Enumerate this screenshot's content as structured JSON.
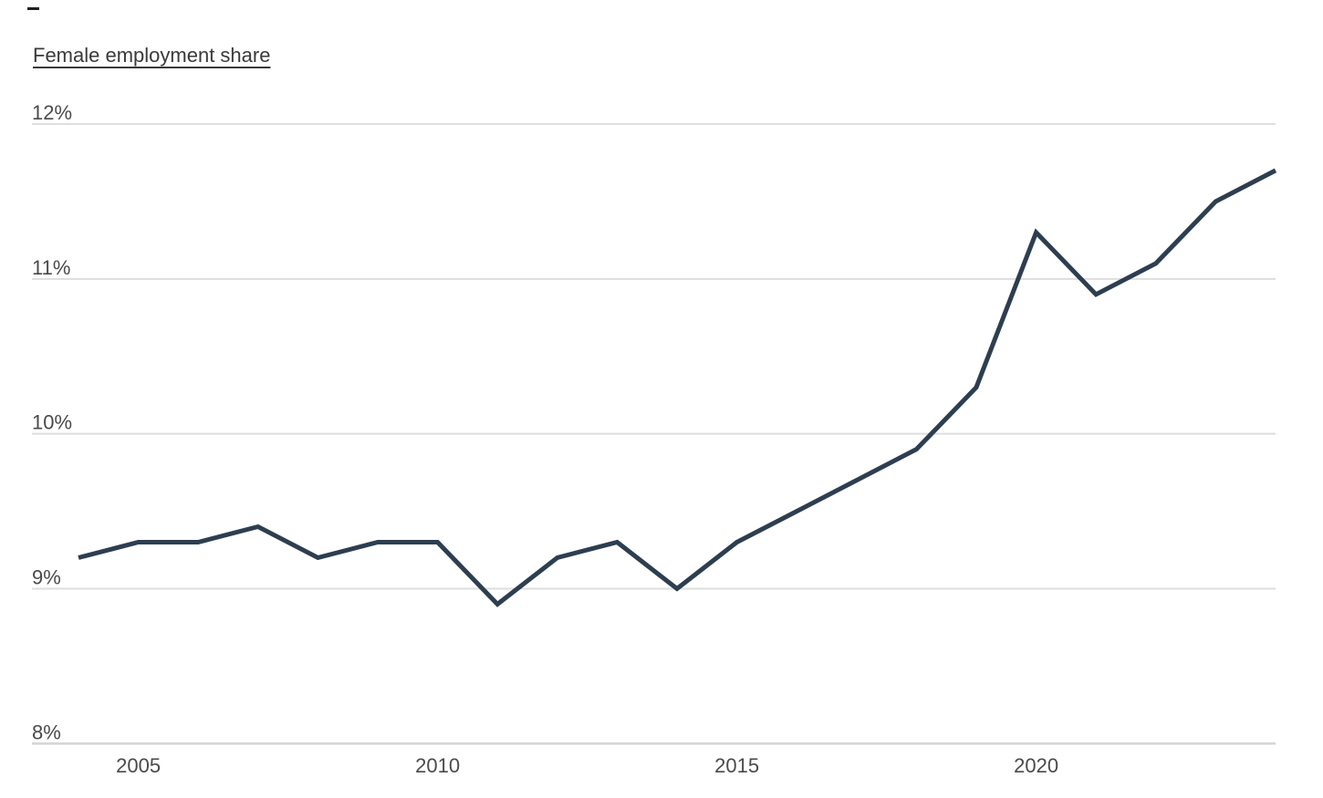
{
  "title": {
    "text": "Female employment share"
  },
  "decorations": {
    "top_left_dash_color": "#1e1e1e"
  },
  "chart_data": {
    "type": "line",
    "title": "Female employment share",
    "x": [
      2004,
      2005,
      2006,
      2007,
      2008,
      2009,
      2010,
      2011,
      2012,
      2013,
      2014,
      2015,
      2016,
      2017,
      2018,
      2019,
      2020,
      2021,
      2022,
      2023,
      2024
    ],
    "series": [
      {
        "name": "Female employment share",
        "values": [
          9.2,
          9.3,
          9.3,
          9.4,
          9.2,
          9.3,
          9.3,
          8.9,
          9.2,
          9.3,
          9.0,
          9.3,
          9.5,
          9.7,
          9.9,
          10.3,
          11.3,
          10.9,
          11.1,
          11.5,
          11.7
        ]
      }
    ],
    "xlabel": "",
    "ylabel": "",
    "xlim": [
      2004,
      2024
    ],
    "ylim": [
      8,
      12
    ],
    "yticks": [
      12,
      11,
      10,
      9,
      8
    ],
    "ytick_labels": [
      "12%",
      "11%",
      "10%",
      "9%",
      "8%"
    ],
    "xticks": [
      2005,
      2010,
      2015,
      2020
    ],
    "xtick_labels": [
      "2005",
      "2010",
      "2015",
      "2020"
    ],
    "grid": "horizontal",
    "legend": "none",
    "colors": {
      "line": "#2d3e50",
      "gridline": "#dedede",
      "axis_line": "#d6d6d6",
      "tick_text": "#4a4a4a",
      "title_text": "#3a3a3a",
      "background": "#ffffff"
    }
  }
}
